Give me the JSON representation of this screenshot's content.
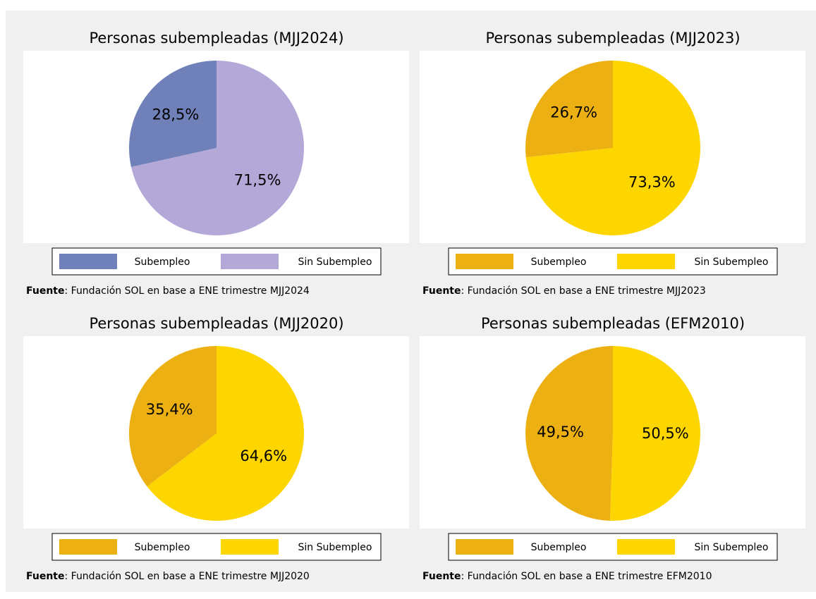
{
  "chart_data": [
    {
      "type": "pie",
      "title": "Personas subempleadas (MJJ2024)",
      "categories": [
        "Subempleo",
        "Sin Subempleo"
      ],
      "values": [
        28.5,
        71.5
      ],
      "value_labels": [
        "28,5%",
        "71,5%"
      ],
      "colors": [
        "#7080b8",
        "#b3a8d8"
      ],
      "source_label": "Fuente",
      "source": ": Fundación SOL en base a ENE trimestre MJJ2024"
    },
    {
      "type": "pie",
      "title": "Personas subempleadas (MJJ2023)",
      "categories": [
        "Subempleo",
        "Sin Subempleo"
      ],
      "values": [
        26.7,
        73.3
      ],
      "value_labels": [
        "26,7%",
        "73,3%"
      ],
      "colors": [
        "#edb013",
        "#fdd600"
      ],
      "source_label": "Fuente",
      "source": ": Fundación SOL en base a ENE trimestre MJJ2023"
    },
    {
      "type": "pie",
      "title": "Personas subempleadas (MJJ2020)",
      "categories": [
        "Subempleo",
        "Sin Subempleo"
      ],
      "values": [
        35.4,
        64.6
      ],
      "value_labels": [
        "35,4%",
        "64,6%"
      ],
      "colors": [
        "#edb013",
        "#fdd600"
      ],
      "source_label": "Fuente",
      "source": ": Fundación SOL en base a ENE trimestre MJJ2020"
    },
    {
      "type": "pie",
      "title": "Personas subempleadas (EFM2010)",
      "categories": [
        "Subempleo",
        "Sin Subempleo"
      ],
      "values": [
        49.5,
        50.5
      ],
      "value_labels": [
        "49,5%",
        "50,5%"
      ],
      "colors": [
        "#edb013",
        "#fdd600"
      ],
      "source_label": "Fuente",
      "source": ": Fundación SOL en base a ENE trimestre EFM2010"
    }
  ]
}
